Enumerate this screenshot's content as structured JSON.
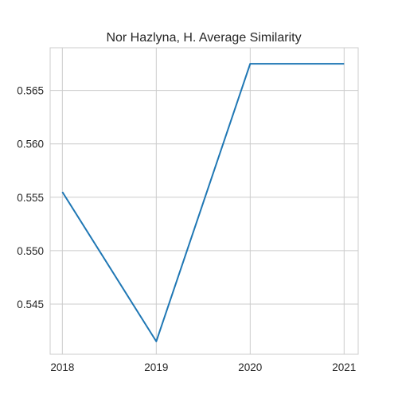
{
  "chart_data": {
    "type": "line",
    "title": "Nor Hazlyna, H. Average Similarity",
    "xlabel": "",
    "ylabel": "",
    "x": [
      "2018",
      "2019",
      "2020",
      "2021"
    ],
    "series": [
      {
        "values": [
          0.5555,
          0.5415,
          0.5675,
          0.5675
        ],
        "color": "#1f77b4"
      }
    ],
    "xlim": [
      2017.87,
      2021.15
    ],
    "ylim": [
      0.5403,
      0.569
    ],
    "yticks": [
      0.545,
      0.55,
      0.555,
      0.56,
      0.565
    ],
    "ytick_labels": [
      "0.545",
      "0.550",
      "0.555",
      "0.560",
      "0.565"
    ],
    "xtick_labels": [
      "2018",
      "2019",
      "2020",
      "2021"
    ],
    "grid": true,
    "grid_color": "#cccccc",
    "frame_color": "#cccccc",
    "background": "#ffffff"
  }
}
